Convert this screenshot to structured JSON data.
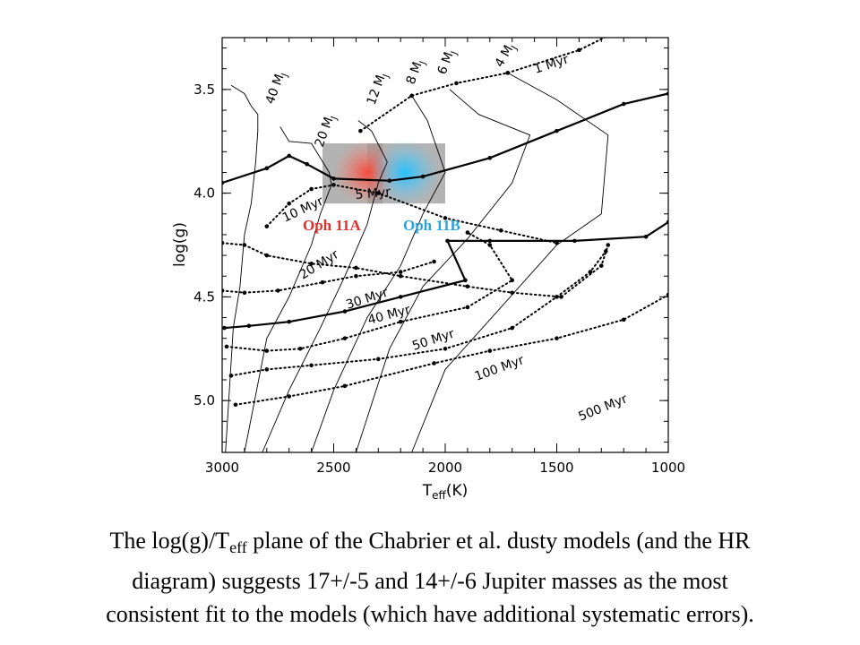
{
  "chart_data": {
    "type": "line",
    "x_axis": {
      "title_main": "T",
      "title_sub": "eff",
      "title_unit": "(K)",
      "range": [
        3000,
        1000
      ],
      "reversed": true,
      "ticks": [
        "3000",
        "2500",
        "2000",
        "1500",
        "1000"
      ],
      "tick_values": [
        3000,
        2500,
        2000,
        1500,
        1000
      ]
    },
    "y_axis": {
      "title": "log(g)",
      "range": [
        3.25,
        5.25
      ],
      "reversed": true,
      "ticks": [
        "3.5",
        "4.0",
        "4.5",
        "5.0"
      ],
      "tick_values": [
        3.5,
        4.0,
        4.5,
        5.0
      ]
    },
    "grid": false,
    "mass_tracks": [
      {
        "label": "40 M",
        "sub": "J",
        "points": [
          [
            2960,
            3.48
          ],
          [
            2900,
            3.52
          ],
          [
            2870,
            3.58
          ],
          [
            2840,
            3.62
          ],
          [
            2840,
            3.7
          ],
          [
            2850,
            3.85
          ],
          [
            2870,
            4.05
          ],
          [
            2900,
            4.2
          ],
          [
            2920,
            4.45
          ],
          [
            2950,
            4.65
          ],
          [
            2985,
            5.25
          ]
        ]
      },
      {
        "label": "20 M",
        "sub": "J",
        "points": [
          [
            2740,
            3.68
          ],
          [
            2700,
            3.75
          ],
          [
            2600,
            3.76
          ],
          [
            2520,
            3.9
          ],
          [
            2510,
            3.96
          ],
          [
            2560,
            4.1
          ],
          [
            2600,
            4.25
          ],
          [
            2700,
            4.5
          ],
          [
            2800,
            4.7
          ],
          [
            2900,
            5.25
          ]
        ]
      },
      {
        "label": "12 M",
        "sub": "J",
        "points": [
          [
            2390,
            3.65
          ],
          [
            2330,
            3.7
          ],
          [
            2260,
            3.85
          ],
          [
            2300,
            3.95
          ],
          [
            2350,
            4.15
          ],
          [
            2450,
            4.4
          ],
          [
            2560,
            4.65
          ],
          [
            2700,
            4.95
          ],
          [
            2820,
            5.25
          ]
        ]
      },
      {
        "label": "8 M",
        "sub": "J",
        "points": [
          [
            2150,
            3.53
          ],
          [
            2080,
            3.65
          ],
          [
            2000,
            3.9
          ],
          [
            2100,
            4.1
          ],
          [
            2200,
            4.35
          ],
          [
            2350,
            4.6
          ],
          [
            2500,
            4.95
          ],
          [
            2600,
            5.25
          ]
        ]
      },
      {
        "label": "6 M",
        "sub": "J",
        "points": [
          [
            1980,
            3.5
          ],
          [
            1850,
            3.62
          ],
          [
            1620,
            3.72
          ],
          [
            1700,
            3.95
          ],
          [
            1900,
            4.22
          ],
          [
            2100,
            4.45
          ],
          [
            2250,
            4.75
          ],
          [
            2400,
            5.25
          ]
        ]
      },
      {
        "label": "4 M",
        "sub": "J",
        "points": [
          [
            1720,
            3.42
          ],
          [
            1500,
            3.55
          ],
          [
            1270,
            3.72
          ],
          [
            1300,
            4.1
          ],
          [
            1500,
            4.25
          ],
          [
            1750,
            4.55
          ],
          [
            2000,
            4.85
          ],
          [
            2150,
            5.25
          ]
        ]
      }
    ],
    "isochrones": [
      {
        "label": "1 Myr",
        "style": "dotted",
        "points": [
          [
            2380,
            3.7
          ],
          [
            2150,
            3.53
          ],
          [
            1950,
            3.47
          ],
          [
            1720,
            3.42
          ],
          [
            1400,
            3.31
          ],
          [
            1230,
            3.22
          ]
        ]
      },
      {
        "label": "5 Myr",
        "style": "solid-thick",
        "points": [
          [
            3000,
            3.95
          ],
          [
            2800,
            3.88
          ],
          [
            2700,
            3.82
          ],
          [
            2620,
            3.86
          ],
          [
            2500,
            3.93
          ],
          [
            2250,
            3.94
          ],
          [
            2100,
            3.92
          ],
          [
            1800,
            3.83
          ],
          [
            1500,
            3.7
          ],
          [
            1200,
            3.57
          ],
          [
            1000,
            3.52
          ]
        ]
      },
      {
        "label": "10 Myr",
        "style": "dotted",
        "points": [
          [
            2800,
            4.16
          ],
          [
            2700,
            4.05
          ],
          [
            2600,
            3.98
          ],
          [
            2500,
            3.96
          ],
          [
            2300,
            4.0
          ],
          [
            2000,
            4.12
          ],
          [
            1750,
            4.18
          ],
          [
            1500,
            4.24
          ]
        ]
      },
      {
        "label": "20 Myr",
        "style": "dotted",
        "points": [
          [
            3000,
            4.24
          ],
          [
            2900,
            4.25
          ],
          [
            2800,
            4.3
          ],
          [
            2600,
            4.34
          ],
          [
            2400,
            4.36
          ],
          [
            2200,
            4.4
          ],
          [
            1900,
            4.45
          ],
          [
            1700,
            4.48
          ],
          [
            1480,
            4.5
          ],
          [
            1300,
            4.35
          ],
          [
            1270,
            4.25
          ]
        ]
      },
      {
        "label": "30 Myr",
        "style": "dotted",
        "points": [
          [
            3000,
            4.47
          ],
          [
            2900,
            4.48
          ],
          [
            2750,
            4.47
          ],
          [
            2550,
            4.43
          ],
          [
            2400,
            4.4
          ],
          [
            2200,
            4.38
          ],
          [
            2050,
            4.33
          ]
        ]
      },
      {
        "label": "40 Myr",
        "style": "solid-thick",
        "points": [
          [
            2990,
            4.65
          ],
          [
            2880,
            4.64
          ],
          [
            2700,
            4.62
          ],
          [
            2450,
            4.57
          ],
          [
            2200,
            4.5
          ],
          [
            1910,
            4.42
          ],
          [
            1990,
            4.23
          ],
          [
            1800,
            4.23
          ],
          [
            1420,
            4.23
          ],
          [
            1100,
            4.21
          ],
          [
            1000,
            4.14
          ]
        ]
      },
      {
        "label": "50 Myr",
        "style": "dotted",
        "points": [
          [
            2980,
            4.74
          ],
          [
            2800,
            4.76
          ],
          [
            2650,
            4.75
          ],
          [
            2450,
            4.7
          ],
          [
            2200,
            4.62
          ],
          [
            1900,
            4.55
          ],
          [
            1700,
            4.42
          ],
          [
            1800,
            4.25
          ],
          [
            1900,
            4.19
          ]
        ]
      },
      {
        "label": "100 Myr",
        "style": "dotted",
        "points": [
          [
            2960,
            4.88
          ],
          [
            2800,
            4.85
          ],
          [
            2600,
            4.83
          ],
          [
            2300,
            4.8
          ],
          [
            2000,
            4.75
          ],
          [
            1700,
            4.65
          ],
          [
            1500,
            4.5
          ],
          [
            1350,
            4.38
          ],
          [
            1280,
            4.28
          ]
        ]
      },
      {
        "label": "500 Myr",
        "style": "dotted",
        "points": [
          [
            2940,
            5.02
          ],
          [
            2700,
            4.98
          ],
          [
            2450,
            4.93
          ],
          [
            2050,
            4.82
          ],
          [
            1800,
            4.76
          ],
          [
            1500,
            4.7
          ],
          [
            1200,
            4.61
          ],
          [
            1000,
            4.49
          ]
        ]
      }
    ],
    "objects": [
      {
        "name": "Oph 11A",
        "color": "#e0302a",
        "center": [
          2350,
          3.9
        ],
        "box": [
          [
            2550,
            3.76
          ],
          [
            2280,
            4.05
          ]
        ]
      },
      {
        "name": "Oph 11B",
        "color": "#2aa4e0",
        "center": [
          2180,
          3.9
        ],
        "box": [
          [
            2350,
            3.76
          ],
          [
            2000,
            4.05
          ]
        ]
      }
    ]
  },
  "caption": {
    "line1_pre": "The log(g)/T",
    "line1_sub": "eff",
    "line1_post": " plane of the Chabrier et al. dusty models (and the HR",
    "line2": "diagram) suggests  17+/-5 and 14+/-6 Jupiter masses  as the most",
    "line3": "consistent  fit to the models (which have additional systematic  errors)."
  }
}
